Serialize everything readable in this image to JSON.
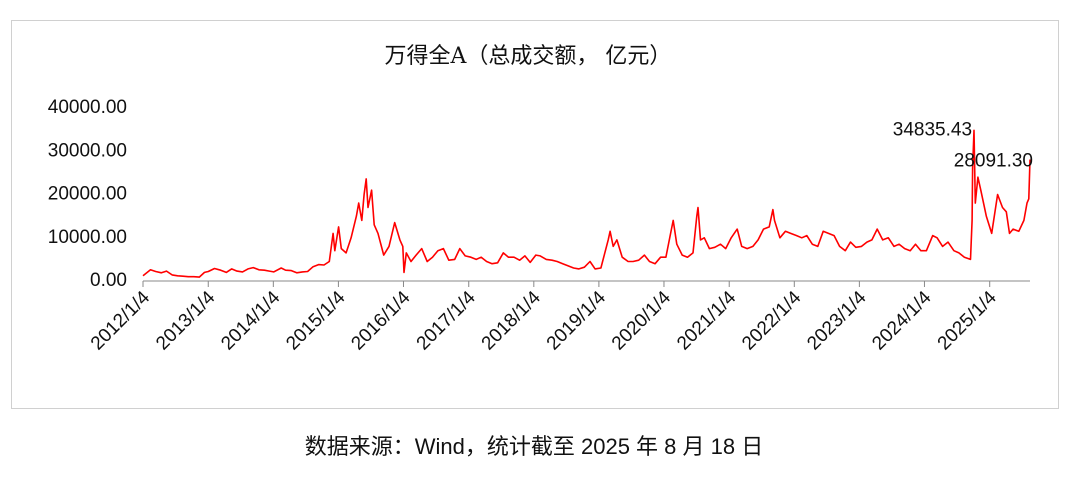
{
  "chart_data": {
    "type": "line",
    "title": "万得全A（总成交额， 亿元）",
    "note": "数据来源：Wind，统计截至 2025 年 8 月 18 日",
    "xlim": [
      "2012/1/4",
      "2025/8/18"
    ],
    "xticks": [
      "2012/1/4",
      "2013/1/4",
      "2014/1/4",
      "2015/1/4",
      "2016/1/4",
      "2017/1/4",
      "2018/1/4",
      "2019/1/4",
      "2020/1/4",
      "2021/1/4",
      "2022/1/4",
      "2023/1/4",
      "2024/1/4",
      "2025/1/4"
    ],
    "ylim": [
      0,
      40000
    ],
    "yticks": [
      {
        "value": 0,
        "label": "0.00"
      },
      {
        "value": 10000,
        "label": "10000.00"
      },
      {
        "value": 20000,
        "label": "20000.00"
      },
      {
        "value": 30000,
        "label": "30000.00"
      },
      {
        "value": 40000,
        "label": "40000.00"
      }
    ],
    "annotations": [
      {
        "x": "2024/10/8",
        "value": 34835.43,
        "label": "34835.43"
      },
      {
        "x": "2025/8/18",
        "value": 28091.3,
        "label": "28091.30"
      }
    ],
    "series": [
      {
        "color": "#ff0000",
        "x": [
          "2012/1/4",
          "2012/2/15",
          "2012/3/15",
          "2012/4/16",
          "2012/5/15",
          "2012/6/15",
          "2012/7/16",
          "2012/8/15",
          "2012/9/14",
          "2012/10/15",
          "2012/11/15",
          "2012/12/14",
          "2013/1/4",
          "2013/2/8",
          "2013/3/15",
          "2013/4/15",
          "2013/5/15",
          "2013/6/14",
          "2013/7/15",
          "2013/8/15",
          "2013/9/13",
          "2013/10/15",
          "2013/11/15",
          "2013/12/13",
          "2014/1/6",
          "2014/2/17",
          "2014/3/14",
          "2014/4/15",
          "2014/5/15",
          "2014/6/16",
          "2014/7/15",
          "2014/8/15",
          "2014/9/15",
          "2014/10/15",
          "2014/11/14",
          "2014/12/5",
          "2014/12/15",
          "2015/1/5",
          "2015/1/20",
          "2015/2/16",
          "2015/3/16",
          "2015/4/15",
          "2015/4/28",
          "2015/5/15",
          "2015/5/28",
          "2015/6/9",
          "2015/6/19",
          "2015/7/9",
          "2015/7/24",
          "2015/8/14",
          "2015/9/15",
          "2015/10/15",
          "2015/11/16",
          "2015/12/15",
          "2015/12/31",
          "2016/1/7",
          "2016/1/20",
          "2016/2/15",
          "2016/3/15",
          "2016/4/15",
          "2016/5/16",
          "2016/6/15",
          "2016/7/15",
          "2016/8/15",
          "2016/9/14",
          "2016/10/17",
          "2016/11/15",
          "2016/12/15",
          "2017/1/16",
          "2017/2/15",
          "2017/3/15",
          "2017/4/14",
          "2017/5/15",
          "2017/6/15",
          "2017/7/17",
          "2017/8/15",
          "2017/9/15",
          "2017/10/16",
          "2017/11/15",
          "2017/12/15",
          "2018/1/15",
          "2018/2/9",
          "2018/3/15",
          "2018/4/16",
          "2018/5/15",
          "2018/6/15",
          "2018/7/16",
          "2018/8/15",
          "2018/9/14",
          "2018/10/15",
          "2018/11/15",
          "2018/12/14",
          "2019/1/15",
          "2019/2/25",
          "2019/3/8",
          "2019/3/25",
          "2019/4/15",
          "2019/5/15",
          "2019/6/17",
          "2019/7/15",
          "2019/8/15",
          "2019/9/16",
          "2019/10/15",
          "2019/11/15",
          "2019/12/16",
          "2020/1/15",
          "2020/2/10",
          "2020/2/25",
          "2020/3/16",
          "2020/4/15",
          "2020/5/15",
          "2020/6/15",
          "2020/7/6",
          "2020/7/13",
          "2020/7/27",
          "2020/8/17",
          "2020/9/15",
          "2020/10/15",
          "2020/11/16",
          "2020/12/15",
          "2021/1/15",
          "2021/2/18",
          "2021/3/15",
          "2021/4/15",
          "2021/5/17",
          "2021/6/15",
          "2021/7/15",
          "2021/8/16",
          "2021/9/6",
          "2021/9/15",
          "2021/10/15",
          "2021/11/15",
          "2021/12/15",
          "2022/1/17",
          "2022/2/15",
          "2022/3/15",
          "2022/4/15",
          "2022/5/16",
          "2022/6/15",
          "2022/7/15",
          "2022/8/15",
          "2022/9/15",
          "2022/10/17",
          "2022/11/15",
          "2022/12/15",
          "2023/1/16",
          "2023/2/15",
          "2023/3/15",
          "2023/4/14",
          "2023/5/15",
          "2023/6/15",
          "2023/7/17",
          "2023/8/15",
          "2023/9/15",
          "2023/10/16",
          "2023/11/15",
          "2023/12/15",
          "2024/1/15",
          "2024/2/19",
          "2024/3/15",
          "2024/4/15",
          "2024/5/15",
          "2024/6/17",
          "2024/7/15",
          "2024/8/15",
          "2024/9/18",
          "2024/9/27",
          "2024/9/30",
          "2024/10/8",
          "2024/10/15",
          "2024/10/30",
          "2024/11/15",
          "2024/12/16",
          "2025/1/15",
          "2025/2/17",
          "2025/3/17",
          "2025/4/7",
          "2025/4/25",
          "2025/5/15",
          "2025/6/16",
          "2025/7/15",
          "2025/8/1",
          "2025/8/11",
          "2025/8/18"
        ],
        "values": [
          1200,
          2600,
          2200,
          1900,
          2300,
          1400,
          1200,
          1100,
          1000,
          1000,
          900,
          2000,
          2200,
          2900,
          2500,
          2000,
          2800,
          2300,
          2100,
          2800,
          3100,
          2600,
          2500,
          2300,
          2100,
          3000,
          2500,
          2400,
          1900,
          2100,
          2200,
          3300,
          3800,
          3700,
          4500,
          11000,
          7000,
          12500,
          7500,
          6500,
          10000,
          15000,
          18000,
          14000,
          20000,
          23600,
          17000,
          21000,
          13000,
          11000,
          6000,
          8000,
          13500,
          9500,
          8000,
          2000,
          6500,
          4500,
          6000,
          7500,
          4500,
          5500,
          7000,
          7500,
          4800,
          5000,
          7500,
          5800,
          5500,
          5000,
          5500,
          4500,
          4000,
          4200,
          6500,
          5500,
          5500,
          4800,
          5800,
          4300,
          6000,
          5800,
          5000,
          4800,
          4500,
          4000,
          3500,
          3000,
          2800,
          3200,
          4500,
          2800,
          3000,
          9500,
          11500,
          8000,
          9500,
          5500,
          4500,
          4500,
          4800,
          6000,
          4500,
          4000,
          5500,
          5500,
          11000,
          14000,
          8500,
          6000,
          5500,
          6500,
          15000,
          17000,
          9500,
          10000,
          7500,
          7800,
          8500,
          7500,
          10000,
          12000,
          8000,
          7500,
          8000,
          9500,
          12000,
          12500,
          16500,
          14000,
          10000,
          11500,
          11000,
          10500,
          10000,
          10500,
          8500,
          8000,
          11500,
          11000,
          10500,
          8000,
          7000,
          9000,
          7800,
          8000,
          9000,
          9500,
          12000,
          9500,
          10000,
          8000,
          8500,
          7500,
          7000,
          8500,
          7000,
          7000,
          10500,
          10000,
          8000,
          9000,
          7000,
          6500,
          5500,
          5000,
          14000,
          26000,
          34835.43,
          18000,
          24000,
          21000,
          15000,
          11000,
          20000,
          17000,
          16000,
          11000,
          12000,
          11500,
          14000,
          18000,
          19000,
          28091.3
        ]
      }
    ]
  }
}
